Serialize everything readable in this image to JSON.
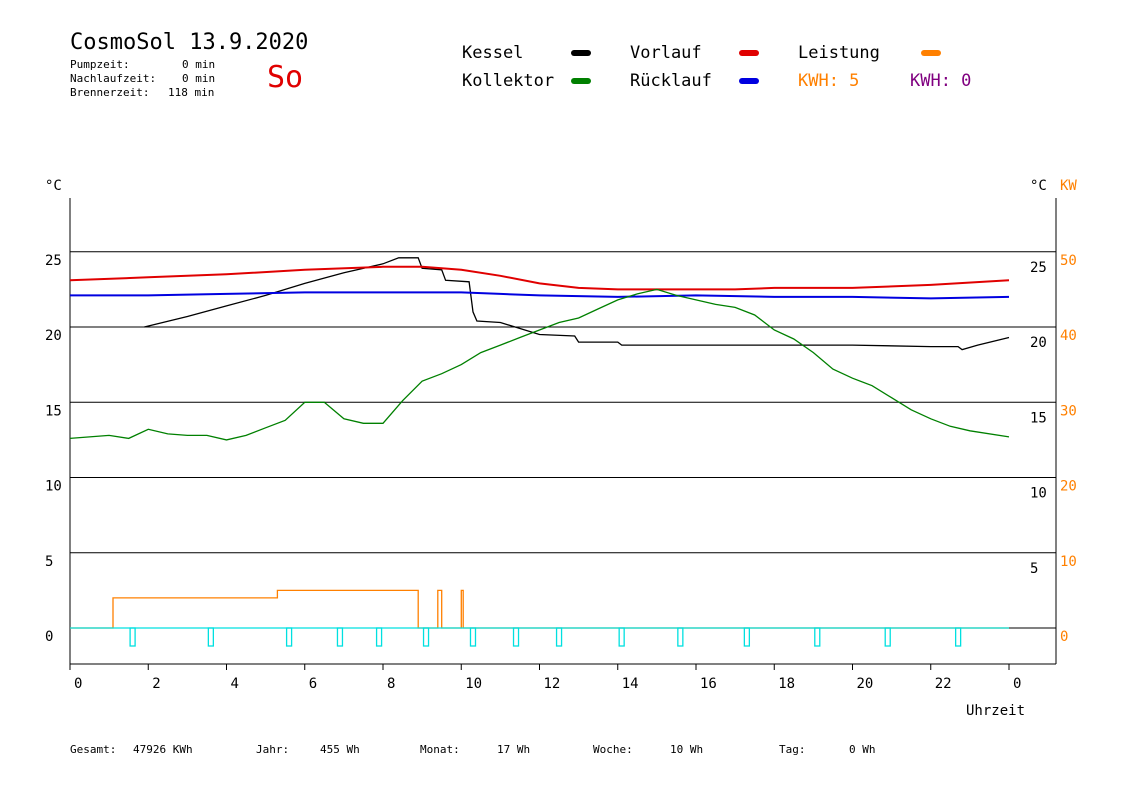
{
  "header": {
    "title": "CosmoSol 13.9.2020",
    "day": "So",
    "stats": [
      {
        "label": "Pumpzeit:",
        "value": "0 min"
      },
      {
        "label": "Nachlaufzeit:",
        "value": "0 min"
      },
      {
        "label": "Brennerzeit:",
        "value": "118 min"
      }
    ]
  },
  "legend": {
    "kessel": {
      "label": "Kessel",
      "color": "#000000"
    },
    "kollektor": {
      "label": "Kollektor",
      "color": "#008000"
    },
    "vorlauf": {
      "label": "Vorlauf",
      "color": "#e00000"
    },
    "ruecklauf": {
      "label": "Rücklauf",
      "color": "#0000e0"
    },
    "leistung": {
      "label": "Leistung",
      "color": "#ff8000"
    },
    "kwh1": "KWH: 5",
    "kwh2": "KWH: 0"
  },
  "colors": {
    "kwh1": "#ff8000",
    "kwh2": "#800080",
    "pump": "#00e0e0"
  },
  "footer": {
    "gesamt": {
      "label": "Gesamt:",
      "value": "47926 KWh"
    },
    "jahr": {
      "label": "Jahr:",
      "value": "455 Wh"
    },
    "monat": {
      "label": "Monat:",
      "value": "17 Wh"
    },
    "woche": {
      "label": "Woche:",
      "value": "10 Wh"
    },
    "tag": {
      "label": "Tag:",
      "value": "0 Wh"
    }
  },
  "chart_data": {
    "type": "line",
    "xlabel": "Uhrzeit",
    "x_range": [
      0,
      24
    ],
    "x_ticks": [
      "0",
      "2",
      "4",
      "6",
      "8",
      "10",
      "12",
      "14",
      "16",
      "18",
      "20",
      "22",
      "0"
    ],
    "y_left": {
      "unit": "°C",
      "range": [
        -2,
        29
      ],
      "ticks": [
        "0",
        "5",
        "10",
        "15",
        "20",
        "25"
      ]
    },
    "y_right_temp": {
      "unit": "°C",
      "ticks": [
        "5",
        "10",
        "15",
        "20",
        "25"
      ]
    },
    "y_right_power": {
      "unit": "KW",
      "ticks": [
        "0",
        "10",
        "20",
        "30",
        "40",
        "50"
      ]
    },
    "grid": "horizontal",
    "series": [
      {
        "name": "Kessel",
        "color": "#000000",
        "points": [
          [
            1.9,
            20
          ],
          [
            3,
            20.7
          ],
          [
            4,
            21.4
          ],
          [
            5,
            22.1
          ],
          [
            6,
            22.9
          ],
          [
            7,
            23.6
          ],
          [
            8,
            24.2
          ],
          [
            8.4,
            24.6
          ],
          [
            8.9,
            24.6
          ],
          [
            9,
            23.9
          ],
          [
            9.5,
            23.8
          ],
          [
            9.6,
            23.1
          ],
          [
            10.2,
            23
          ],
          [
            10.3,
            21
          ],
          [
            10.4,
            20.4
          ],
          [
            11,
            20.3
          ],
          [
            12,
            19.5
          ],
          [
            12.9,
            19.4
          ],
          [
            13,
            19
          ],
          [
            14,
            19
          ],
          [
            14.1,
            18.8
          ],
          [
            16,
            18.8
          ],
          [
            18,
            18.8
          ],
          [
            20,
            18.8
          ],
          [
            22,
            18.7
          ],
          [
            22.7,
            18.7
          ],
          [
            22.8,
            18.5
          ],
          [
            23.2,
            18.8
          ],
          [
            24,
            19.3
          ]
        ]
      },
      {
        "name": "Vorlauf",
        "color": "#e00000",
        "points": [
          [
            0,
            23.1
          ],
          [
            2,
            23.3
          ],
          [
            4,
            23.5
          ],
          [
            6,
            23.8
          ],
          [
            8,
            24
          ],
          [
            9,
            24
          ],
          [
            10,
            23.8
          ],
          [
            11,
            23.4
          ],
          [
            12,
            22.9
          ],
          [
            13,
            22.6
          ],
          [
            14,
            22.5
          ],
          [
            15,
            22.5
          ],
          [
            16,
            22.5
          ],
          [
            17,
            22.5
          ],
          [
            18,
            22.6
          ],
          [
            20,
            22.6
          ],
          [
            22,
            22.8
          ],
          [
            24,
            23.1
          ]
        ]
      },
      {
        "name": "Rücklauf",
        "color": "#0000e0",
        "points": [
          [
            0,
            22.1
          ],
          [
            2,
            22.1
          ],
          [
            4,
            22.2
          ],
          [
            6,
            22.3
          ],
          [
            8,
            22.3
          ],
          [
            10,
            22.3
          ],
          [
            11,
            22.2
          ],
          [
            12,
            22.1
          ],
          [
            14,
            22
          ],
          [
            16,
            22.1
          ],
          [
            18,
            22
          ],
          [
            20,
            22
          ],
          [
            22,
            21.9
          ],
          [
            24,
            22
          ]
        ]
      },
      {
        "name": "Kollektor",
        "color": "#008000",
        "points": [
          [
            0,
            12.6
          ],
          [
            1,
            12.8
          ],
          [
            1.5,
            12.6
          ],
          [
            2,
            13.2
          ],
          [
            2.5,
            12.9
          ],
          [
            3,
            12.8
          ],
          [
            3.5,
            12.8
          ],
          [
            4,
            12.5
          ],
          [
            4.5,
            12.8
          ],
          [
            5,
            13.3
          ],
          [
            5.5,
            13.8
          ],
          [
            6,
            15
          ],
          [
            6.5,
            15
          ],
          [
            7,
            13.9
          ],
          [
            7.5,
            13.6
          ],
          [
            8,
            13.6
          ],
          [
            8.5,
            15.1
          ],
          [
            9,
            16.4
          ],
          [
            9.5,
            16.9
          ],
          [
            10,
            17.5
          ],
          [
            10.5,
            18.3
          ],
          [
            11,
            18.8
          ],
          [
            11.5,
            19.3
          ],
          [
            12,
            19.8
          ],
          [
            12.5,
            20.3
          ],
          [
            13,
            20.6
          ],
          [
            13.5,
            21.2
          ],
          [
            14,
            21.8
          ],
          [
            14.5,
            22.2
          ],
          [
            15,
            22.5
          ],
          [
            15.5,
            22.1
          ],
          [
            16,
            21.8
          ],
          [
            16.5,
            21.5
          ],
          [
            17,
            21.3
          ],
          [
            17.5,
            20.8
          ],
          [
            18,
            19.8
          ],
          [
            18.5,
            19.2
          ],
          [
            19,
            18.3
          ],
          [
            19.5,
            17.2
          ],
          [
            20,
            16.6
          ],
          [
            20.5,
            16.1
          ],
          [
            21,
            15.3
          ],
          [
            21.5,
            14.5
          ],
          [
            22,
            13.9
          ],
          [
            22.5,
            13.4
          ],
          [
            23,
            13.1
          ],
          [
            24,
            12.7
          ]
        ]
      }
    ],
    "leistung": {
      "name": "Leistung",
      "unit": "KW",
      "color": "#ff8000",
      "points": [
        [
          0,
          0
        ],
        [
          1.1,
          0
        ],
        [
          1.1,
          0.4
        ],
        [
          5.3,
          0.4
        ],
        [
          5.3,
          0.5
        ],
        [
          8.9,
          0.5
        ],
        [
          8.9,
          0
        ],
        [
          9.4,
          0
        ],
        [
          9.4,
          0.5
        ],
        [
          9.5,
          0.5
        ],
        [
          9.5,
          0
        ],
        [
          10,
          0
        ],
        [
          10,
          0.5
        ],
        [
          10.05,
          0.5
        ],
        [
          10.05,
          0
        ],
        [
          24,
          0
        ]
      ]
    },
    "pump_pulses_hours": [
      1.6,
      3.6,
      5.6,
      6.9,
      7.9,
      9.1,
      10.3,
      11.4,
      12.5,
      14.1,
      15.6,
      17.3,
      19.1,
      20.9,
      22.7
    ]
  }
}
